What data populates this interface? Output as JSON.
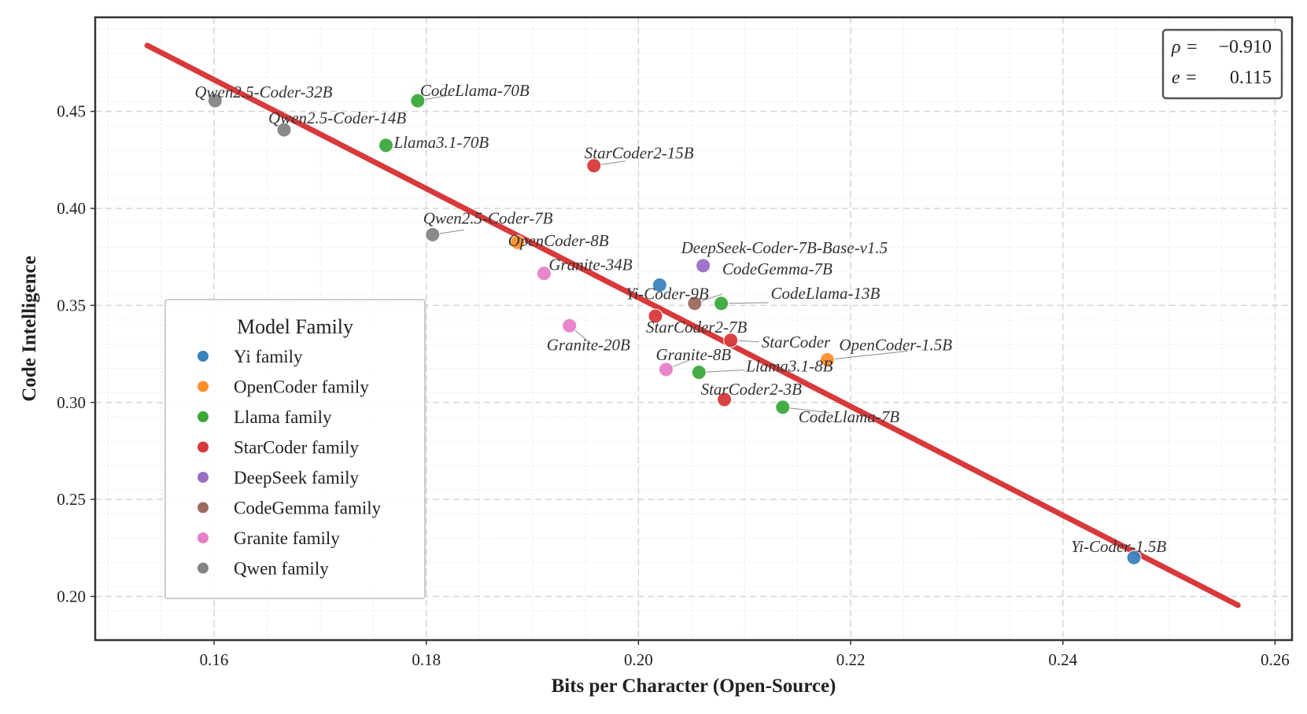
{
  "chart_data": {
    "type": "scatter",
    "title": "",
    "xlabel": "Bits per Character (Open-Source)",
    "ylabel": "Code Intelligence",
    "xlim": [
      0.1488,
      0.2616
    ],
    "ylim": [
      0.1775,
      0.4985
    ],
    "xticks": [
      0.16,
      0.18,
      0.2,
      0.22,
      0.24,
      0.26
    ],
    "yticks": [
      0.2,
      0.25,
      0.3,
      0.35,
      0.4,
      0.45
    ],
    "xtick_labels": [
      "0.16",
      "0.18",
      "0.20",
      "0.22",
      "0.24",
      "0.26"
    ],
    "ytick_labels": [
      "0.20",
      "0.25",
      "0.30",
      "0.35",
      "0.40",
      "0.45"
    ],
    "grid": true,
    "legend": {
      "title": "Model Family",
      "position": "center-left",
      "entries": [
        {
          "family": "Yi",
          "label": "Yi family",
          "color": "#3b83bd"
        },
        {
          "family": "OpenCoder",
          "label": "OpenCoder family",
          "color": "#ff8e2b"
        },
        {
          "family": "Llama",
          "label": "Llama family",
          "color": "#3ca83c"
        },
        {
          "family": "StarCoder",
          "label": "StarCoder family",
          "color": "#d8393a"
        },
        {
          "family": "DeepSeek",
          "label": "DeepSeek family",
          "color": "#9b6fc6"
        },
        {
          "family": "CodeGemma",
          "label": "CodeGemma family",
          "color": "#9c6b60"
        },
        {
          "family": "Granite",
          "label": "Granite family",
          "color": "#e67fc6"
        },
        {
          "family": "Qwen",
          "label": "Qwen family",
          "color": "#848484"
        }
      ]
    },
    "fit_line": {
      "color": "#d8393a",
      "x": [
        0.1537,
        0.2565
      ],
      "y": [
        0.484,
        0.1955
      ]
    },
    "stats": {
      "rho_label": "ρ =",
      "rho": "−0.910",
      "e_label": "e =",
      "e": "0.115"
    },
    "points": [
      {
        "label": "Qwen2.5-Coder-32B",
        "family": "Qwen",
        "x": 0.1601,
        "y": 0.4555
      },
      {
        "label": "Qwen2.5-Coder-14B",
        "family": "Qwen",
        "x": 0.1666,
        "y": 0.4405
      },
      {
        "label": "Qwen2.5-Coder-7B",
        "family": "Qwen",
        "x": 0.1806,
        "y": 0.3865
      },
      {
        "label": "CodeLlama-70B",
        "family": "Llama",
        "x": 0.1792,
        "y": 0.4555
      },
      {
        "label": "Llama3.1-70B",
        "family": "Llama",
        "x": 0.1762,
        "y": 0.4325
      },
      {
        "label": "StarCoder2-15B",
        "family": "StarCoder",
        "x": 0.1958,
        "y": 0.422
      },
      {
        "label": "OpenCoder-8B",
        "family": "OpenCoder",
        "x": 0.1886,
        "y": 0.3825
      },
      {
        "label": "Granite-34B",
        "family": "Granite",
        "x": 0.1911,
        "y": 0.3665
      },
      {
        "label": "Granite-20B",
        "family": "Granite",
        "x": 0.1935,
        "y": 0.3395
      },
      {
        "label": "Yi-Coder-9B",
        "family": "Yi",
        "x": 0.202,
        "y": 0.3605
      },
      {
        "label": "DeepSeek-Coder-7B-Base-v1.5",
        "family": "DeepSeek",
        "x": 0.2061,
        "y": 0.3705
      },
      {
        "label": "CodeGemma-7B",
        "family": "CodeGemma",
        "x": 0.2053,
        "y": 0.351
      },
      {
        "label": "CodeLlama-13B",
        "family": "Llama",
        "x": 0.2078,
        "y": 0.351
      },
      {
        "label": "StarCoder2-7B",
        "family": "StarCoder",
        "x": 0.2016,
        "y": 0.3445
      },
      {
        "label": "StarCoder",
        "family": "StarCoder",
        "x": 0.2087,
        "y": 0.332
      },
      {
        "label": "OpenCoder-1.5B",
        "family": "OpenCoder",
        "x": 0.2178,
        "y": 0.322
      },
      {
        "label": "Granite-8B",
        "family": "Granite",
        "x": 0.2026,
        "y": 0.317
      },
      {
        "label": "Llama3.1-8B",
        "family": "Llama",
        "x": 0.2057,
        "y": 0.3155
      },
      {
        "label": "StarCoder2-3B",
        "family": "StarCoder",
        "x": 0.2081,
        "y": 0.3015
      },
      {
        "label": "CodeLlama-7B",
        "family": "Llama",
        "x": 0.2136,
        "y": 0.2975
      },
      {
        "label": "Yi-Coder-1.5B",
        "family": "Yi",
        "x": 0.2467,
        "y": 0.22
      }
    ]
  }
}
